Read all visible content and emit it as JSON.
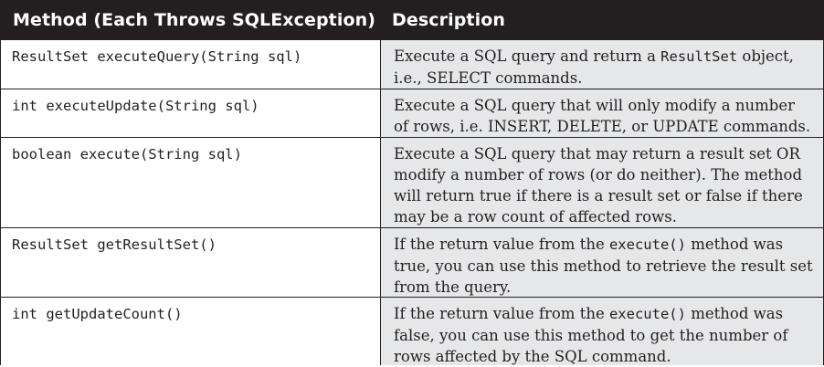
{
  "table": {
    "headers": {
      "method": "Method (Each Throws SQLException)",
      "description": "Description"
    },
    "rows": [
      {
        "method": "ResultSet executeQuery(String sql)",
        "desc": [
          {
            "t": "Execute a SQL query and return a "
          },
          {
            "c": "ResultSet"
          },
          {
            "t": " object, i.e., SELECT commands."
          }
        ]
      },
      {
        "method": "int executeUpdate(String sql)",
        "desc": [
          {
            "t": "Execute a SQL query that will only modify a number of rows, i.e. INSERT, DELETE, or UPDATE commands."
          }
        ]
      },
      {
        "method": "boolean execute(String sql)",
        "desc": [
          {
            "t": "Execute a SQL query that may return a result set OR modify a number of rows (or do neither). The method will return true if there is a result set or false if there may be a row count of affected rows."
          }
        ]
      },
      {
        "method": "ResultSet getResultSet()",
        "desc": [
          {
            "t": "If the return value from the "
          },
          {
            "c": "execute()"
          },
          {
            "t": " method was true, you can use this method to retrieve the result set from the query."
          }
        ]
      },
      {
        "method": "int getUpdateCount()",
        "desc": [
          {
            "t": "If the return value from the "
          },
          {
            "c": "execute()"
          },
          {
            "t": " method was false, you can use this method to get the number of rows affected by the SQL command."
          }
        ]
      }
    ],
    "colors": {
      "header_bg": "#231f20",
      "header_text": "#ffffff",
      "method_bg": "#ffffff",
      "desc_bg": "#e6e7e8",
      "text": "#231f20"
    }
  }
}
